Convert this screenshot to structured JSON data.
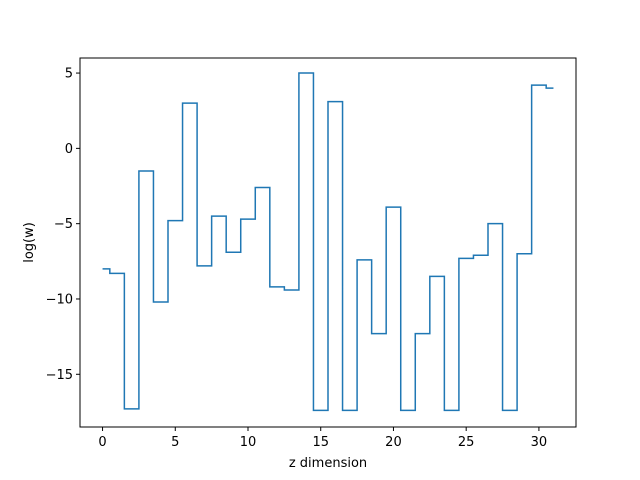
{
  "chart_data": {
    "type": "line",
    "drawstyle": "steps-mid",
    "title": "",
    "xlabel": "z dimension",
    "ylabel": "log(w)",
    "xlim": [
      -1.55,
      32.55
    ],
    "ylim": [
      -18.5,
      6.0
    ],
    "xticks": [
      0,
      5,
      10,
      15,
      20,
      25,
      30
    ],
    "yticks": [
      -15,
      -10,
      -5,
      0,
      5
    ],
    "xtick_labels": [
      "0",
      "5",
      "10",
      "15",
      "20",
      "25",
      "30"
    ],
    "ytick_labels": [
      "−15",
      "−10",
      "−5",
      "0",
      "5"
    ],
    "grid": false,
    "series": [
      {
        "color": "#1f77b4",
        "x": [
          0,
          1,
          2,
          3,
          4,
          5,
          6,
          7,
          8,
          9,
          10,
          11,
          12,
          13,
          14,
          15,
          16,
          17,
          18,
          19,
          20,
          21,
          22,
          23,
          24,
          25,
          26,
          27,
          28,
          29,
          30,
          31
        ],
        "y": [
          -8.0,
          -8.3,
          -17.3,
          -1.5,
          -10.2,
          -4.8,
          3.0,
          -7.8,
          -4.5,
          -6.9,
          -4.7,
          -2.6,
          -9.2,
          -9.4,
          5.0,
          -17.4,
          3.1,
          -17.4,
          -7.4,
          -12.3,
          -3.9,
          -17.4,
          -12.3,
          -8.5,
          -17.4,
          -7.3,
          -7.1,
          -5.0,
          -17.4,
          -7.0,
          4.2,
          4.0
        ]
      }
    ]
  }
}
